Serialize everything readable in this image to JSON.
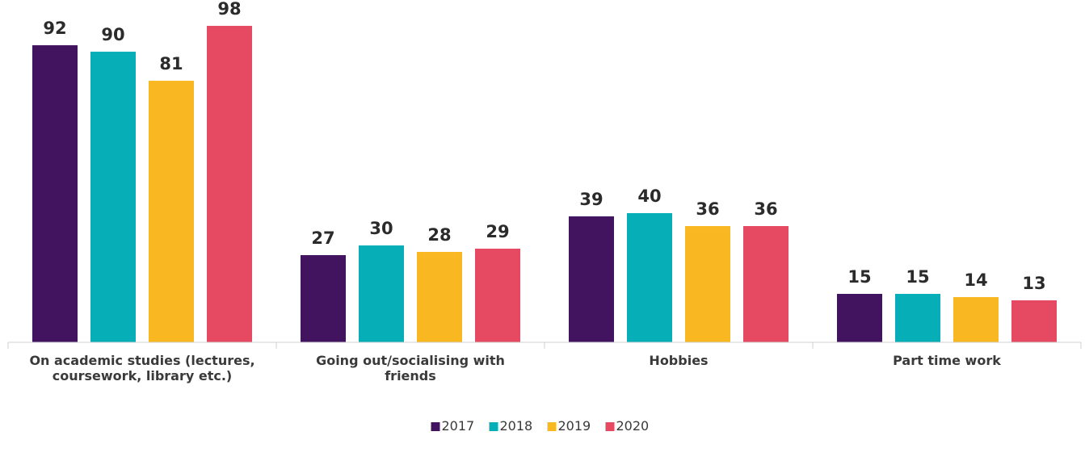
{
  "chart_data": {
    "type": "bar",
    "categories": [
      [
        "On academic studies (lectures,",
        "coursework, library etc.)"
      ],
      [
        "Going out/socialising with",
        "friends"
      ],
      [
        "Hobbies"
      ],
      [
        "Part time work"
      ]
    ],
    "series": [
      {
        "name": "2017",
        "color": "#42145f",
        "values": [
          92,
          27,
          39,
          15
        ]
      },
      {
        "name": "2018",
        "color": "#06aeb8",
        "values": [
          90,
          30,
          40,
          15
        ]
      },
      {
        "name": "2019",
        "color": "#f9b822",
        "values": [
          81,
          28,
          36,
          14
        ]
      },
      {
        "name": "2020",
        "color": "#e64962",
        "values": [
          98,
          29,
          36,
          13
        ]
      }
    ],
    "ylim": [
      0,
      100
    ],
    "grid": false,
    "legend_position": "bottom",
    "data_labels": true
  }
}
